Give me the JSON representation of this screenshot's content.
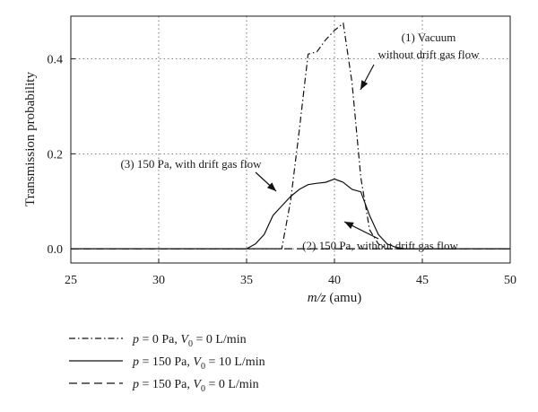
{
  "chart_data": {
    "type": "line",
    "xlabel_italic": "m/z",
    "xlabel_unit": " (amu)",
    "ylabel": "Transmission probability",
    "xlim": [
      25,
      50
    ],
    "ylim": [
      -0.03,
      0.49
    ],
    "xticks": [
      "25",
      "30",
      "35",
      "40",
      "45",
      "50"
    ],
    "yticks": [
      "0.0",
      "0.2",
      "0.4"
    ],
    "grid": true,
    "series": [
      {
        "id": "vacuum",
        "style": "dashdot",
        "legend": {
          "p": "p",
          "p_val": " = 0 Pa,  ",
          "v": "V",
          "v_sub": "0",
          "v_val": " = 0 L/min"
        },
        "points": [
          [
            25,
            0
          ],
          [
            37,
            0
          ],
          [
            37.5,
            0.1
          ],
          [
            38,
            0.25
          ],
          [
            38.5,
            0.41
          ],
          [
            39,
            0.415
          ],
          [
            39.5,
            0.44
          ],
          [
            40,
            0.46
          ],
          [
            40.5,
            0.475
          ],
          [
            41,
            0.35
          ],
          [
            41.5,
            0.15
          ],
          [
            42,
            0.04
          ],
          [
            42.5,
            0.01
          ],
          [
            43,
            0
          ],
          [
            50,
            0
          ]
        ]
      },
      {
        "id": "drift",
        "style": "solid",
        "legend": {
          "p": "p",
          "p_val": " = 150 Pa,  ",
          "v": "V",
          "v_sub": "0",
          "v_val": " = 10 L/min"
        },
        "points": [
          [
            25,
            0
          ],
          [
            35,
            0
          ],
          [
            35.5,
            0.01
          ],
          [
            36,
            0.03
          ],
          [
            36.5,
            0.07
          ],
          [
            37,
            0.09
          ],
          [
            37.5,
            0.11
          ],
          [
            38,
            0.125
          ],
          [
            38.5,
            0.135
          ],
          [
            39,
            0.138
          ],
          [
            39.5,
            0.14
          ],
          [
            40,
            0.147
          ],
          [
            40.5,
            0.14
          ],
          [
            41,
            0.125
          ],
          [
            41.5,
            0.12
          ],
          [
            42,
            0.07
          ],
          [
            42.5,
            0.03
          ],
          [
            43,
            0.01
          ],
          [
            43.5,
            0.003
          ],
          [
            44,
            0
          ],
          [
            50,
            0
          ]
        ]
      },
      {
        "id": "nodrift",
        "style": "dashed",
        "legend": {
          "p": "p",
          "p_val": " = 150 Pa,  ",
          "v": "V",
          "v_sub": "0",
          "v_val": " = 0 L/min"
        },
        "points": [
          [
            25,
            0
          ],
          [
            50,
            0
          ]
        ]
      }
    ],
    "annotations": [
      {
        "lines": [
          "(1) Vacuum",
          "without drift gas flow"
        ]
      },
      {
        "lines": [
          "(3) 150 Pa, with drift gas flow"
        ]
      },
      {
        "lines": [
          "(2) 150 Pa, without drift gas flow"
        ]
      }
    ]
  }
}
